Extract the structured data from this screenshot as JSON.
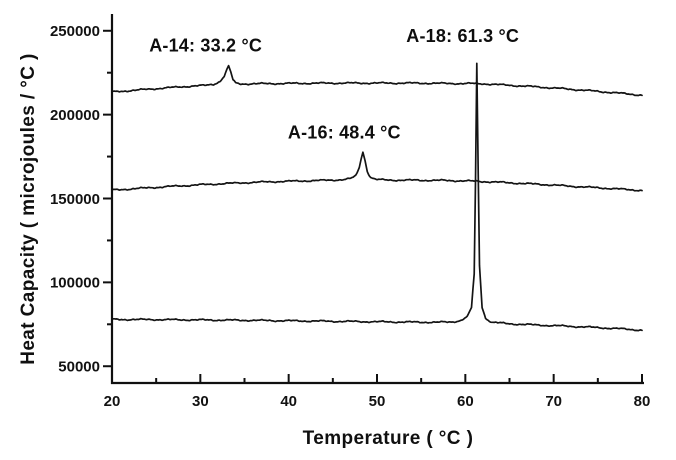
{
  "figure": {
    "background": "#ffffff",
    "ink_color": "#141414",
    "axis_color": "#101010"
  },
  "chart_data": {
    "type": "line",
    "title": "",
    "xlabel": "Temperature ( °C )",
    "ylabel": "Heat Capacity ( microjoules / °C )",
    "xlim": [
      20,
      80
    ],
    "ylim": [
      40000,
      260000
    ],
    "x_major_ticks": [
      20,
      30,
      40,
      50,
      60,
      70,
      80
    ],
    "x_minor_ticks": [
      25,
      35,
      45,
      55,
      65,
      75
    ],
    "y_major_ticks": [
      50000,
      100000,
      150000,
      200000,
      250000
    ],
    "y_minor_ticks": [
      75000,
      125000,
      175000,
      225000
    ],
    "grid": false,
    "legend": "none",
    "series": [
      {
        "name": "A-14",
        "peak_temp_c": 33.2,
        "points": [
          [
            20,
            213500
          ],
          [
            23,
            214700
          ],
          [
            26,
            215900
          ],
          [
            29,
            217000
          ],
          [
            30.5,
            217400
          ],
          [
            31.5,
            218100
          ],
          [
            32.2,
            219700
          ],
          [
            32.7,
            222900
          ],
          [
            33.0,
            226900
          ],
          [
            33.2,
            229200
          ],
          [
            33.45,
            225400
          ],
          [
            33.7,
            220800
          ],
          [
            34.0,
            218800
          ],
          [
            34.6,
            218300
          ],
          [
            36,
            218400
          ],
          [
            38,
            218500
          ],
          [
            42,
            218700
          ],
          [
            46,
            218800
          ],
          [
            50,
            218800
          ],
          [
            54,
            218800
          ],
          [
            58,
            218600
          ],
          [
            61,
            218500
          ],
          [
            62,
            218400
          ],
          [
            65,
            217500
          ],
          [
            68,
            216600
          ],
          [
            71,
            215500
          ],
          [
            74,
            214300
          ],
          [
            77,
            213000
          ],
          [
            80,
            211600
          ]
        ]
      },
      {
        "name": "A-16",
        "peak_temp_c": 48.4,
        "points": [
          [
            20,
            155000
          ],
          [
            23,
            156000
          ],
          [
            26,
            157000
          ],
          [
            29,
            157900
          ],
          [
            32,
            158700
          ],
          [
            35,
            159400
          ],
          [
            38,
            160000
          ],
          [
            41,
            160400
          ],
          [
            44,
            160800
          ],
          [
            46,
            161200
          ],
          [
            47.0,
            161800
          ],
          [
            47.6,
            163500
          ],
          [
            48.0,
            168500
          ],
          [
            48.2,
            173500
          ],
          [
            48.4,
            177600
          ],
          [
            48.65,
            172500
          ],
          [
            48.9,
            166000
          ],
          [
            49.3,
            162600
          ],
          [
            49.8,
            161400
          ],
          [
            51,
            161000
          ],
          [
            54,
            160900
          ],
          [
            57,
            160800
          ],
          [
            60,
            160500
          ],
          [
            63,
            159900
          ],
          [
            66,
            159100
          ],
          [
            69,
            158300
          ],
          [
            72,
            157300
          ],
          [
            76,
            156100
          ],
          [
            80,
            154800
          ]
        ]
      },
      {
        "name": "A-18",
        "peak_temp_c": 61.3,
        "points": [
          [
            20,
            77900
          ],
          [
            25,
            77800
          ],
          [
            30,
            77600
          ],
          [
            35,
            77400
          ],
          [
            40,
            77100
          ],
          [
            45,
            76800
          ],
          [
            50,
            76500
          ],
          [
            54,
            76300
          ],
          [
            57,
            76200
          ],
          [
            58.5,
            76400
          ],
          [
            59.5,
            77300
          ],
          [
            60.2,
            79500
          ],
          [
            60.7,
            85000
          ],
          [
            61.0,
            105000
          ],
          [
            61.15,
            160000
          ],
          [
            61.3,
            230500
          ],
          [
            61.45,
            170000
          ],
          [
            61.6,
            110000
          ],
          [
            61.9,
            85000
          ],
          [
            62.3,
            78500
          ],
          [
            63,
            76200
          ],
          [
            65,
            75300
          ],
          [
            68,
            74600
          ],
          [
            71,
            74000
          ],
          [
            74,
            73300
          ],
          [
            77,
            72500
          ],
          [
            80,
            71500
          ]
        ]
      }
    ],
    "annotations": [
      {
        "text": "A-14: 33.2 °C",
        "series": "A-14",
        "x": 30.6,
        "y": 241500
      },
      {
        "text": "A-16: 48.4 °C",
        "series": "A-16",
        "x": 46.3,
        "y": 189500
      },
      {
        "text": "A-18: 61.3 °C",
        "series": "A-18",
        "x": 59.7,
        "y": 247000
      }
    ]
  }
}
